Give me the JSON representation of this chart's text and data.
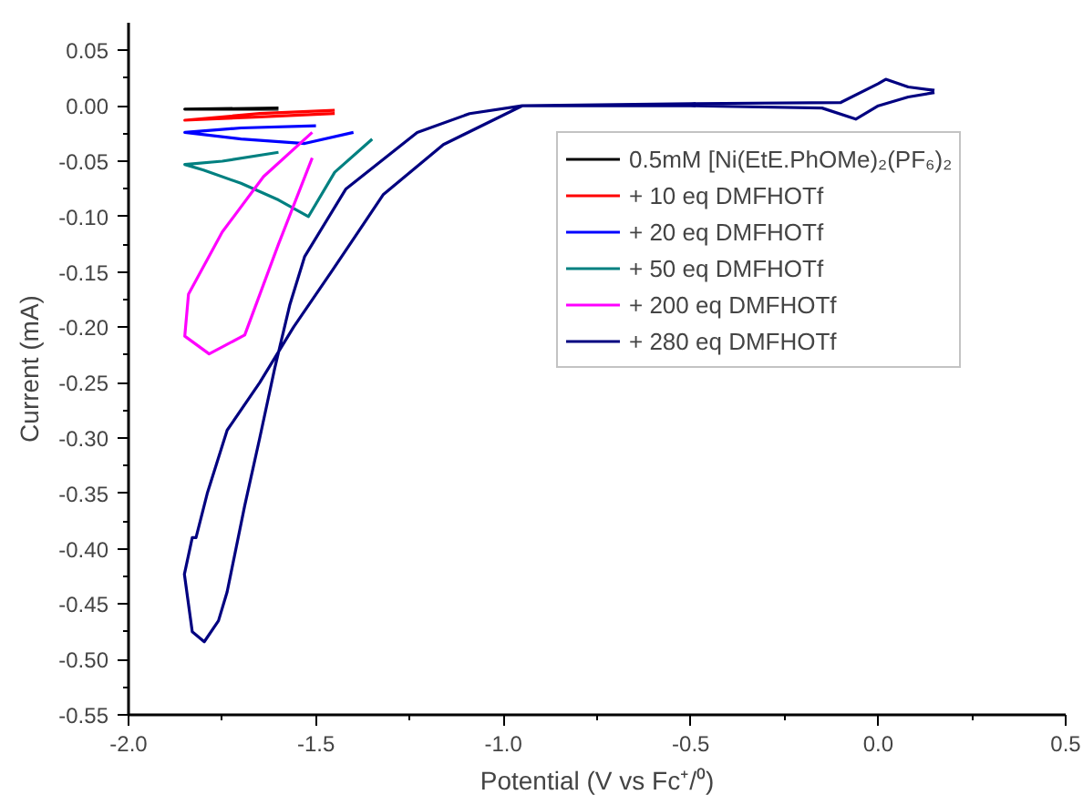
{
  "chart_data": {
    "type": "line",
    "xlabel": "Potential (V vs Fc⁺/⁰)",
    "ylabel": "Current (mA)",
    "xlim": [
      -2.0,
      0.5
    ],
    "xticks": [
      {
        "value": -2.0,
        "label": "-2.0"
      },
      {
        "value": -1.5,
        "label": "-1.5"
      },
      {
        "value": -1.0,
        "label": "-1.0"
      },
      {
        "value": -0.5,
        "label": "-0.5"
      },
      {
        "value": 0.0,
        "label": "0.0"
      },
      {
        "value": 0.5,
        "label": "0.5"
      }
    ],
    "ylim": [
      -0.55,
      0.075
    ],
    "yticks": [
      {
        "value": 0.05,
        "label": "0.05"
      },
      {
        "value": 0.0,
        "label": "0.00"
      },
      {
        "value": -0.05,
        "label": "-0.05"
      },
      {
        "value": -0.1,
        "label": "-0.10"
      },
      {
        "value": -0.15,
        "label": "-0.15"
      },
      {
        "value": -0.2,
        "label": "-0.20"
      },
      {
        "value": -0.25,
        "label": "-0.25"
      },
      {
        "value": -0.3,
        "label": "-0.30"
      },
      {
        "value": -0.35,
        "label": "-0.35"
      },
      {
        "value": -0.4,
        "label": "-0.40"
      },
      {
        "value": -0.45,
        "label": "-0.45"
      },
      {
        "value": -0.5,
        "label": "-0.50"
      },
      {
        "value": -0.55,
        "label": "-0.55"
      }
    ],
    "grid": false,
    "legend": "top right",
    "line_style": "solid",
    "marker": "none",
    "series": [
      {
        "name": "0.5mM [Ni(EtE.PhOMe)₂(PF₆)₂",
        "color": "#000000",
        "x": [
          -1.6,
          -1.85,
          -1.6
        ],
        "values": [
          -0.003,
          -0.003,
          -0.002
        ]
      },
      {
        "name": "+ 10 eq DMFHOTf",
        "color": "#ff0000",
        "x": [
          -1.45,
          -1.65,
          -1.85,
          -1.65,
          -1.45
        ],
        "values": [
          -0.007,
          -0.01,
          -0.013,
          -0.007,
          -0.004
        ]
      },
      {
        "name": "+ 20 eq DMFHOTf",
        "color": "#0000ff",
        "x": [
          -1.4,
          -1.53,
          -1.7,
          -1.85,
          -1.7,
          -1.5
        ],
        "values": [
          -0.024,
          -0.034,
          -0.03,
          -0.024,
          -0.02,
          -0.018
        ]
      },
      {
        "name": "+ 50 eq DMFHOTf",
        "color": "#008080",
        "x": [
          -1.35,
          -1.45,
          -1.52,
          -1.6,
          -1.7,
          -1.8,
          -1.85,
          -1.75,
          -1.6
        ],
        "values": [
          -0.03,
          -0.06,
          -0.1,
          -0.085,
          -0.07,
          -0.058,
          -0.053,
          -0.05,
          -0.042
        ]
      },
      {
        "name": "+ 200 eq DMFHOTf",
        "color": "#ff00ff",
        "x": [
          -1.51,
          -1.6,
          -1.69,
          -1.785,
          -1.85,
          -1.84,
          -1.75,
          -1.64,
          -1.51
        ],
        "values": [
          -0.047,
          -0.125,
          -0.207,
          -0.224,
          -0.208,
          -0.17,
          -0.114,
          -0.064,
          -0.024
        ]
      },
      {
        "name": "+ 280 eq DMFHOTf",
        "color": "#000080",
        "x": [
          0.15,
          0.08,
          0.0,
          -0.06,
          -0.15,
          -0.5,
          -0.95,
          -1.16,
          -1.32,
          -1.455,
          -1.56,
          -1.65,
          -1.737,
          -1.79,
          -1.82,
          -1.83,
          -1.851,
          -1.83,
          -1.798,
          -1.76,
          -1.737,
          -1.69,
          -1.65,
          -1.61,
          -1.57,
          -1.53,
          -1.42,
          -1.23,
          -1.09,
          -0.95,
          -0.5,
          -0.1,
          0.0,
          0.02,
          0.08,
          0.15
        ],
        "values": [
          0.012,
          0.008,
          0.0,
          -0.012,
          -0.002,
          0.0,
          0.0,
          -0.035,
          -0.08,
          -0.148,
          -0.2,
          -0.25,
          -0.293,
          -0.35,
          -0.39,
          -0.39,
          -0.423,
          -0.475,
          -0.484,
          -0.465,
          -0.439,
          -0.361,
          -0.3,
          -0.237,
          -0.18,
          -0.136,
          -0.075,
          -0.024,
          -0.007,
          0.0,
          0.002,
          0.003,
          0.02,
          0.024,
          0.017,
          0.014
        ]
      }
    ]
  }
}
